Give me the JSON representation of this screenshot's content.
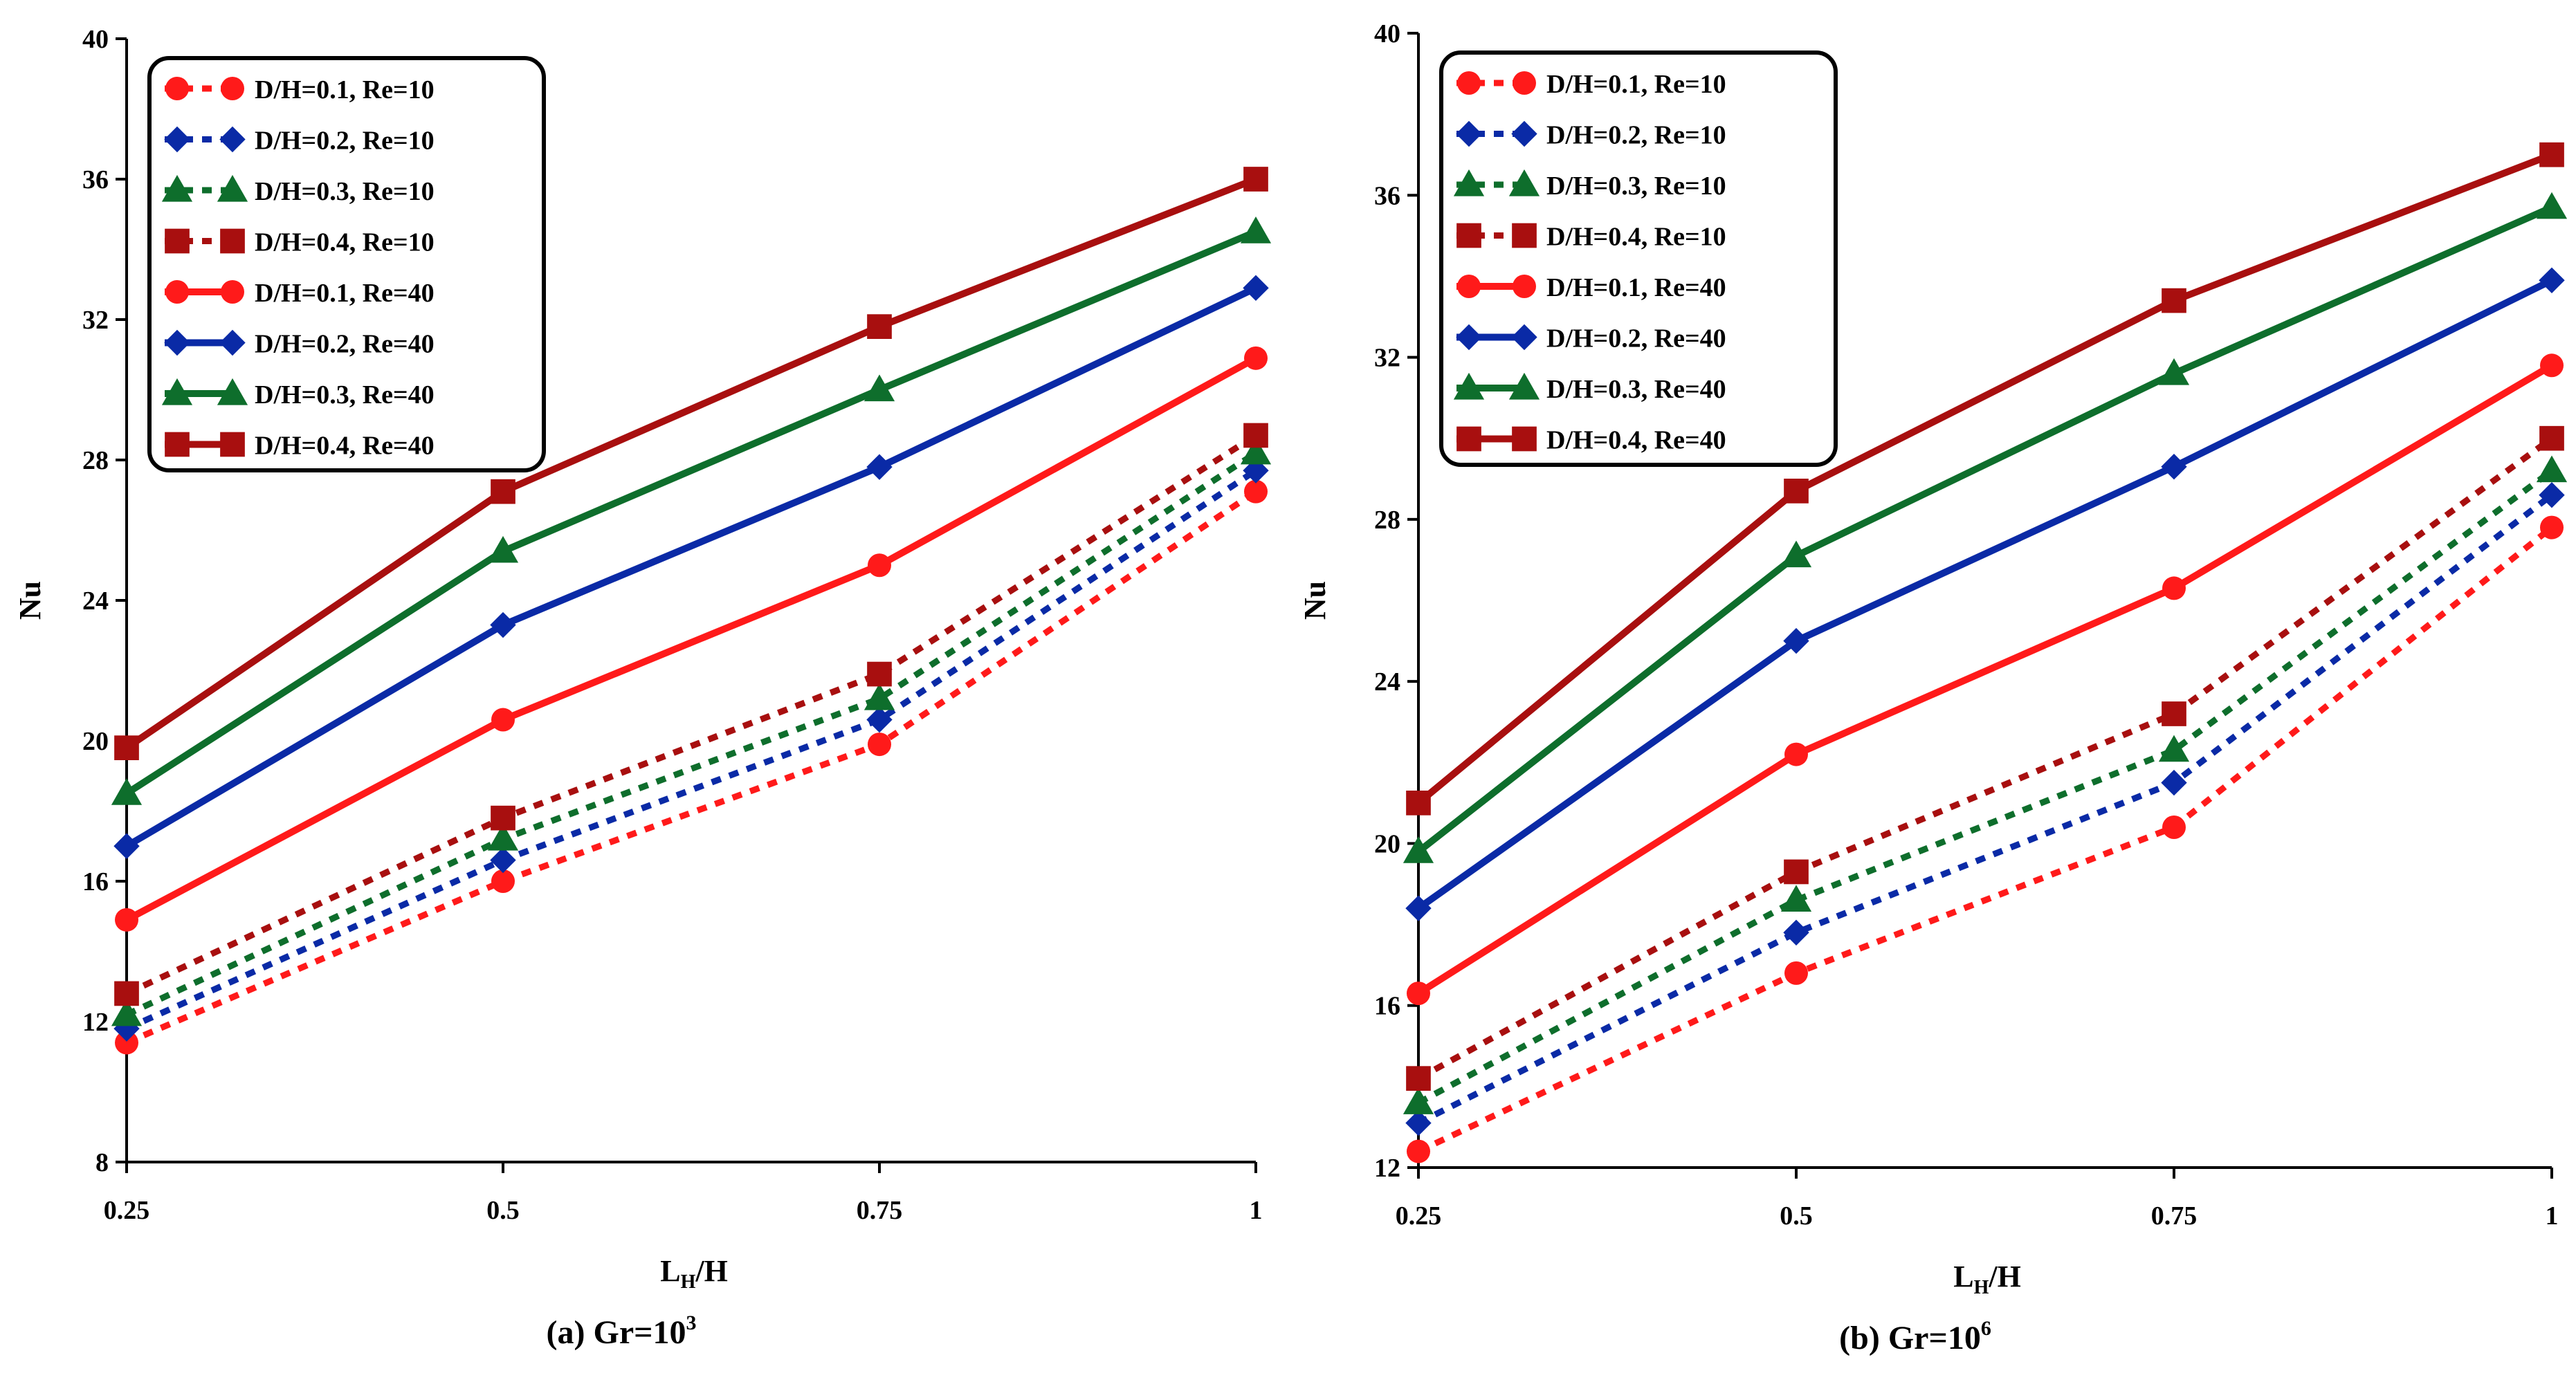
{
  "colors": {
    "red": "#ff1a1a",
    "blue": "#0a2aa6",
    "green": "#0e6e2c",
    "darkred": "#a80f0f",
    "axis": "#000000"
  },
  "chart_data": [
    {
      "type": "line",
      "title": "(a) Gr=10",
      "title_sup": "3",
      "xlabel": "L",
      "xlabel_sub": "H",
      "xlabel_rest": "/H",
      "ylabel": "Nu",
      "x": [
        0.25,
        0.5,
        0.75,
        1
      ],
      "xticks": [
        "0.25",
        "0.5",
        "0.75",
        "1"
      ],
      "ylim": [
        8,
        40
      ],
      "yticks": [
        "8",
        "12",
        "16",
        "20",
        "24",
        "28",
        "32",
        "36",
        "40"
      ],
      "legend_position": "top-left",
      "series": [
        {
          "name": "D/H=0.1, Re=10",
          "color": "red",
          "marker": "circle",
          "dashed": true,
          "values": [
            11.4,
            16.0,
            19.9,
            27.1
          ]
        },
        {
          "name": "D/H=0.2, Re=10",
          "color": "blue",
          "marker": "diamond",
          "dashed": true,
          "values": [
            11.8,
            16.6,
            20.6,
            27.7
          ]
        },
        {
          "name": "D/H=0.3, Re=10",
          "color": "green",
          "marker": "triangle",
          "dashed": true,
          "values": [
            12.2,
            17.2,
            21.2,
            28.2
          ]
        },
        {
          "name": "D/H=0.4, Re=10",
          "color": "darkred",
          "marker": "square",
          "dashed": true,
          "values": [
            12.8,
            17.8,
            21.9,
            28.7
          ]
        },
        {
          "name": "D/H=0.1, Re=40",
          "color": "red",
          "marker": "circle",
          "dashed": false,
          "values": [
            14.9,
            20.6,
            25.0,
            30.9
          ]
        },
        {
          "name": "D/H=0.2, Re=40",
          "color": "blue",
          "marker": "diamond",
          "dashed": false,
          "values": [
            17.0,
            23.3,
            27.8,
            32.9
          ]
        },
        {
          "name": "D/H=0.3, Re=40",
          "color": "green",
          "marker": "triangle",
          "dashed": false,
          "values": [
            18.5,
            25.4,
            30.0,
            34.5
          ]
        },
        {
          "name": "D/H=0.4, Re=40",
          "color": "darkred",
          "marker": "square",
          "dashed": false,
          "values": [
            19.8,
            27.1,
            31.8,
            36.0
          ]
        }
      ]
    },
    {
      "type": "line",
      "title": "(b) Gr=10",
      "title_sup": "6",
      "xlabel": "L",
      "xlabel_sub": "H",
      "xlabel_rest": "/H",
      "ylabel": "Nu",
      "x": [
        0.25,
        0.5,
        0.75,
        1
      ],
      "xticks": [
        "0.25",
        "0.5",
        "0.75",
        "1"
      ],
      "ylim": [
        12,
        40
      ],
      "yticks": [
        "12",
        "16",
        "20",
        "24",
        "28",
        "32",
        "36",
        "40"
      ],
      "legend_position": "top-left",
      "series": [
        {
          "name": "D/H=0.1, Re=10",
          "color": "red",
          "marker": "circle",
          "dashed": true,
          "values": [
            12.4,
            16.8,
            20.4,
            27.8
          ]
        },
        {
          "name": "D/H=0.2, Re=10",
          "color": "blue",
          "marker": "diamond",
          "dashed": true,
          "values": [
            13.1,
            17.8,
            21.5,
            28.6
          ]
        },
        {
          "name": "D/H=0.3, Re=10",
          "color": "green",
          "marker": "triangle",
          "dashed": true,
          "values": [
            13.6,
            18.6,
            22.3,
            29.2
          ]
        },
        {
          "name": "D/H=0.4, Re=10",
          "color": "darkred",
          "marker": "square",
          "dashed": true,
          "values": [
            14.2,
            19.3,
            23.2,
            30.0
          ]
        },
        {
          "name": "D/H=0.1, Re=40",
          "color": "red",
          "marker": "circle",
          "dashed": false,
          "values": [
            16.3,
            22.2,
            26.3,
            31.8
          ]
        },
        {
          "name": "D/H=0.2, Re=40",
          "color": "blue",
          "marker": "diamond",
          "dashed": false,
          "values": [
            18.4,
            25.0,
            29.3,
            33.9
          ]
        },
        {
          "name": "D/H=0.3, Re=40",
          "color": "green",
          "marker": "triangle",
          "dashed": false,
          "values": [
            19.8,
            27.1,
            31.6,
            35.7
          ]
        },
        {
          "name": "D/H=0.4, Re=40",
          "color": "darkred",
          "marker": "square",
          "dashed": false,
          "values": [
            21.0,
            28.7,
            33.4,
            37.0
          ]
        }
      ]
    }
  ]
}
